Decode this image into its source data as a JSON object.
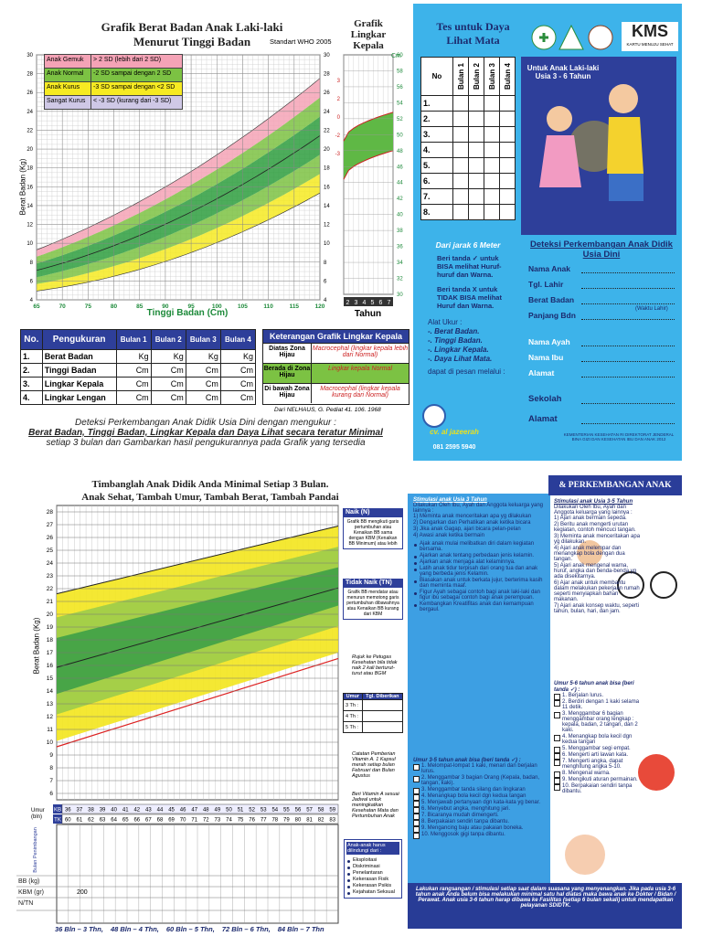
{
  "top_chart": {
    "title": "Grafik Berat Badan Anak Laki-laki",
    "subtitle": "Menurut Tinggi Badan",
    "standard": "Standart WHO 2005",
    "y_label": "Berat Badan (Kg)",
    "x_label": "Tinggi Badan (Cm)",
    "yticks": [
      4,
      6,
      8,
      10,
      12,
      14,
      16,
      18,
      20,
      22,
      24,
      26,
      28,
      30
    ],
    "xticks": [
      65,
      70,
      75,
      80,
      85,
      90,
      95,
      100,
      105,
      110,
      115,
      120
    ],
    "legend": [
      {
        "key": "Anak Gemuk",
        "desc": "> 2 SD (lebih dari 2 SD)",
        "color": "#f4a3b6"
      },
      {
        "key": "Anak Normal",
        "desc": "-2 SD sampai dengan 2 SD",
        "color": "#7cc243"
      },
      {
        "key": "Anak Kurus",
        "desc": "-3 SD sampai dengan <2 SD",
        "color": "#f6ea22"
      },
      {
        "key": "Sangat Kurus",
        "desc": "< -3 SD (kurang dari -3 SD)",
        "color": "#cfc8e6"
      }
    ]
  },
  "head_chart": {
    "title": "Grafik Lingkar Kepala",
    "unit": "Cm",
    "yticks": [
      30,
      32,
      34,
      36,
      38,
      40,
      42,
      44,
      46,
      48,
      50,
      52,
      54,
      56,
      58,
      60
    ],
    "z_labels": [
      "3",
      "2",
      "0",
      "-2",
      "-3"
    ],
    "years": [
      "2",
      "3",
      "4",
      "5",
      "6",
      "7"
    ],
    "x_label": "Tahun"
  },
  "measure_table": {
    "header": [
      "No.",
      "Pengukuran",
      "Bulan 1",
      "Bulan 2",
      "Bulan 3",
      "Bulan 4"
    ],
    "rows": [
      [
        "1.",
        "Berat Badan",
        "Kg",
        "Kg",
        "Kg",
        "Kg"
      ],
      [
        "2.",
        "Tinggi Badan",
        "Cm",
        "Cm",
        "Cm",
        "Cm"
      ],
      [
        "3.",
        "Lingkar Kepala",
        "Cm",
        "Cm",
        "Cm",
        "Cm"
      ],
      [
        "4.",
        "Lingkar Lengan",
        "Cm",
        "Cm",
        "Cm",
        "Cm"
      ]
    ]
  },
  "head_legend": {
    "title": "Keterangan Grafik Lingkar Kepala",
    "rows": [
      [
        "Diatas Zona Hijau",
        "Macrocephal (lingkar kepala lebih dari Normal)"
      ],
      [
        "Berada di Zona Hijau",
        "Lingkar kepala Normal"
      ],
      [
        "Di bawah Zona Hijau",
        "Macrocephal (lingkar kepala kurang dari Normal)"
      ]
    ],
    "source": "Dari NELHAUS, G. Pediat 41. 106. 1968"
  },
  "note": [
    "Deteksi Perkembangan Anak Didik Usia Dini dengan mengukur :",
    "Berat Badan, Tinggi Badan, Lingkar Kepala dan Daya Lihat secara teratur Minimal",
    "setiap 3 bulan dan Gambarkan hasil pengukurannya pada Grafik yang tersedia"
  ],
  "vision": {
    "title": "Tes untuk Daya Lihat Mata",
    "header": [
      "No",
      "Bulan 1",
      "Bulan 2",
      "Bulan 3",
      "Bulan 4"
    ],
    "rows": [
      "1.",
      "2.",
      "3.",
      "4.",
      "5.",
      "6.",
      "7.",
      "8."
    ],
    "distance": "Dari jarak 6 Meter",
    "can": "Beri tanda ✓ untuk BISA melihat Huruf-huruf dan Warna.",
    "cannot": "Beri tanda X untuk TIDAK BISA melihat Huruf dan Warna.",
    "tools_title": "Alat Ukur :",
    "tools": [
      "-. Berat Badan.",
      "-. Tinggi Badan.",
      "-. Lingkar Kepala.",
      "-. Daya Lihat Mata."
    ],
    "order": "dapat di pesan melalui :",
    "vendor": "cv. al jazeerah",
    "phone": "081 2595 5940"
  },
  "kms": {
    "logo": "KMS",
    "logo_sub": "KARTU MENUJU SEHAT",
    "target": "Untuk Anak Laki-laki Usia 3 - 6 Tahun",
    "heading": "Deteksi Perkembangan Anak Didik Usia Dini",
    "fields1": [
      "Nama Anak",
      "Tgl. Lahir",
      "Berat Badan",
      "Panjang Bdn"
    ],
    "birth_note": "(Waktu Lahir)",
    "fields2": [
      "Nama Ayah",
      "Nama Ibu",
      "Alamat"
    ],
    "fields3": [
      "Sekolah",
      "Alamat"
    ],
    "footer": "KEMENTERIAN KESEHATAN RI DIREKTORAT JENDERAL BINA GIZI DAN KESEHATAN IBU DAN ANAK 2012"
  },
  "weight_chart": {
    "title": "Timbanglah Anak Didik Anda Minimal Setiap 3 Bulan.",
    "subtitle": "Anak Sehat, Tambah Umur, Tambah Berat, Tambah Pandai",
    "y_label": "Berat Badan (Kg)",
    "yticks": [
      6,
      7,
      8,
      9,
      10,
      11,
      12,
      13,
      14,
      15,
      16,
      17,
      18,
      19,
      20,
      21,
      22,
      23,
      24,
      25,
      26,
      27,
      28
    ],
    "age_label": "Umur (bln)",
    "kb_label": "KB",
    "tk_label": "TK",
    "kb": [
      36,
      37,
      38,
      39,
      40,
      41,
      42,
      43,
      44,
      45,
      46,
      47,
      48,
      49,
      50,
      51,
      52,
      53,
      54,
      55,
      56,
      57,
      58,
      59
    ],
    "tk": [
      60,
      61,
      62,
      63,
      64,
      65,
      66,
      67,
      68,
      69,
      70,
      71,
      72,
      73,
      74,
      75,
      76,
      77,
      78,
      79,
      80,
      81,
      82,
      83
    ],
    "row_labels": [
      "Bulan Penimbangan",
      "BB (kg)",
      "KBM (gr)",
      "N/TN"
    ],
    "kbm": "200",
    "age_notes": [
      "36 Bln – 3 Thn,",
      "48 Bln – 4 Thn,",
      "60 Bln – 5 Thn,",
      "72 Bln – 6 Thn,",
      "84 Bln – 7 Thn"
    ]
  },
  "side_notes": {
    "up_title": "Naik (N)",
    "up_text": "Grafik BB mengikuti garis pertumbuhan atau Kenaikan BB sama dengan KBM (Kenaikan BB Minimum) atau lebih",
    "down_title": "Tidak Naik (TN)",
    "down_text": "Grafik BB mendatar atau menurun memotong garis pertumbuhan dibawahnya atau Kenaikan BB kurang dari KBM",
    "refer": "Rujuk ke Petugas Kesehatan bila tidak naik 2 kali berturut-turut atau BGM",
    "vit_header": [
      "Umur",
      "Tgl. Diberikan"
    ],
    "vit_rows": [
      "3 Th :",
      "4 Th :",
      "5 Th :"
    ],
    "vit_note": "Catatan Pemberian Vitamin A. 1 Kapsul merah setiap bulan Februari dan Bulan Agustus",
    "vit_advice": "Beri Vitamin A sesuai Jadwal untuk meningkatkan Kesehatan Mata dan Pertumbuhan Anak",
    "protect_title": "Anak-anak harus dilindungi dari :",
    "protect": [
      "Eksploitasi",
      "Diskriminasi",
      "Penelantaran",
      "Kekerasan Fisik",
      "Kekerasan Psikis",
      "Kejahatan Seksual"
    ]
  },
  "development": {
    "header": "& PERKEMBANGAN ANAK",
    "left_title": "Stimulasi anak Usia 3 Tahun",
    "left_intro": "Dilakukan Oleh Ibu, Ayah dan Anggota keluarga yang lainnya :",
    "left_items": [
      "1) Meminta anak menceritakan apa yg dilakukan",
      "2) Dengarkan dan Perhatikan anak ketika bicara",
      "3) Jika anak Gagap, ajari bicara pelan-pelan",
      "4) Awasi anak ketika bermain"
    ],
    "left_bullets": [
      "Ajak anak mulai melibatkan diri dalam kegiatan bersama.",
      "Ajarkan anak tentang perbedaan jenis kelamin.",
      "Ajarkan anak menjaga alat kelaminnya.",
      "Latih anak tidur terpisah dari orang tua dan anak yang berbeda jenis Kelamin.",
      "Biasakan anak untuk berkata jujur, berterima kasih dan meminta maaf.",
      "Figur Ayah sebagai contoh bagi anak laki-laki dan figur ibu sebagai contoh bagi anak perempuan.",
      "Kembangkan Kreatifitas anak dan kemampuan bergaul."
    ],
    "left_check_title": "Umur 3-5 tahun anak bisa (beri tanda ✓) :",
    "left_checks": [
      "1. Melompat-lompat 1 kaki, menari dan berjalan lurus.",
      "2. Menggambar 3 bagian Orang (Kepala, badan, tangan, kaki).",
      "3. Menggambar tanda silang dan lingkaran",
      "4. Menangkap bola kecil dgn kedua tangan",
      "5. Menjawab pertanyaan dgn kata-kata yg benar.",
      "6. Menyebut angka, menghitung jari.",
      "7. Bicaranya mudah dimengerti.",
      "8. Berpakaian sendiri tanpa dibantu.",
      "9. Mengancing baju atau pakaian boneka.",
      "10. Menggosok gigi tanpa dibantu."
    ],
    "right_title": "Stimulasi anak Usia 3-5 Tahun",
    "right_intro": "Dilakukan Oleh Ibu, Ayah dan Anggota keluarga yang lainnya :",
    "right_items": [
      "1) Ajari anak bermain sepeda.",
      "2) Beritu anak mengerti urutan kegiatan, contoh mencuci tangan.",
      "3) Meminta anak menceritakan apa yg dilakukan.",
      "4) Ajari anak melempar dan menangkap bola dengan dua tangan.",
      "5) Ajari anak mengenal warna, huruf, angka dan benda-benda yg ada disekitarnya.",
      "6) Ajar anak untuk membantu dalam melakukan pekerjaan rumah seperti menyiapkan bahan makanan.",
      "7) Ajari anak konsep waktu, seperti tahun, bulan, hari, dan jam."
    ],
    "right_check_title": "Umur 5-6 tahun anak bisa (beri tanda ✓) :",
    "right_checks": [
      "1. Berjalan lurus.",
      "2. Berdiri dengan 1 kaki selama 11 detik.",
      "3. Menggambar 6 bagian menggambar orang lengkap : kepala, badan, 2 tangan, dan 2 kaki.",
      "4. Menangkap bola kecil dgn kedua tangan",
      "5. Menggambar segi empat.",
      "6. Mengerti arti lawan kata.",
      "7. Mengerti angka, dapat menghitung angka 5-10.",
      "8. Mengenal warna.",
      "9. Mengikuti aturan permainan.",
      "10. Berpakaian sendiri tanpa dibantu."
    ],
    "footer": "Lakukan rangsangan / stimulasi setiap saat dalam suasana yang menyenangkan. Jika pada usia 3-6 tahun anak Anda belum bisa melakukan minimal satu hal diatas maka bawa anak ke Dokter / Bidan / Perawat. Anak usia 3-6 tahun harap dibawa ke Fasilitas (setiap 6 bulan sekali) untuk mendapatkan pelayanan SDIDTK."
  }
}
